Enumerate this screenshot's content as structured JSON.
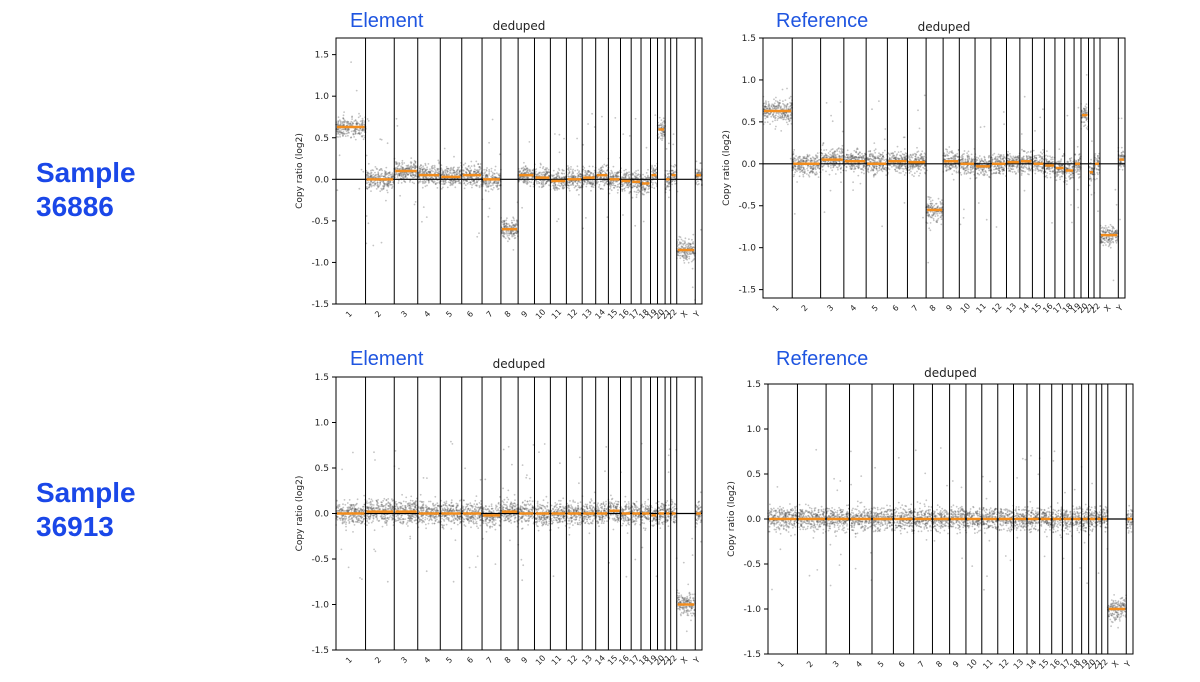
{
  "samples": [
    {
      "label": "Sample\n36886"
    },
    {
      "label": "Sample\n36913"
    }
  ],
  "colors": {
    "label_blue": "#1a47e8",
    "point_gray": "#555555",
    "segment_orange": "#f28c1c",
    "axis": "#000000"
  },
  "chart_data": [
    {
      "type": "scatter",
      "panel_label": "Element",
      "title": "deduped",
      "ylabel": "Copy ratio (log2)",
      "xlabel": "",
      "ylim": [
        -1.5,
        1.7
      ],
      "yticks": [
        -1.5,
        -1.0,
        -0.5,
        0.0,
        0.5,
        1.0,
        1.5
      ],
      "categories": [
        "1",
        "2",
        "3",
        "4",
        "5",
        "6",
        "7",
        "8",
        "9",
        "10",
        "11",
        "12",
        "13",
        "14",
        "15",
        "16",
        "17",
        "18",
        "19",
        "20",
        "21",
        "22",
        "X",
        "Y"
      ],
      "series": [
        {
          "values": [
            0.63,
            0.0,
            0.1,
            0.05,
            0.03,
            0.05,
            0.0,
            -0.6,
            0.05,
            0.02,
            -0.02,
            0.0,
            0.02,
            0.05,
            0.0,
            -0.02,
            -0.03,
            -0.05,
            0.05,
            0.6,
            0.0,
            0.05,
            -0.85,
            0.05
          ]
        }
      ],
      "grid": false
    },
    {
      "type": "scatter",
      "panel_label": "Reference",
      "title": "deduped",
      "ylabel": "Copy ratio (log2)",
      "xlabel": "",
      "ylim": [
        -1.6,
        1.5
      ],
      "yticks": [
        -1.5,
        -1.0,
        -0.5,
        0.0,
        0.5,
        1.0,
        1.5
      ],
      "categories": [
        "1",
        "2",
        "3",
        "4",
        "5",
        "6",
        "7",
        "8",
        "9",
        "10",
        "11",
        "12",
        "13",
        "14",
        "15",
        "16",
        "17",
        "18",
        "19",
        "20",
        "21",
        "22",
        "X",
        "Y"
      ],
      "series": [
        {
          "values": [
            0.63,
            0.0,
            0.05,
            0.03,
            0.0,
            0.03,
            0.02,
            -0.55,
            0.03,
            0.0,
            -0.03,
            0.0,
            0.02,
            0.03,
            0.0,
            -0.02,
            -0.05,
            -0.08,
            0.0,
            0.58,
            -0.1,
            0.0,
            -0.85,
            0.05
          ]
        }
      ],
      "grid": false
    },
    {
      "type": "scatter",
      "panel_label": "Element",
      "title": "deduped",
      "ylabel": "Copy ratio (log2)",
      "xlabel": "",
      "ylim": [
        -1.5,
        1.5
      ],
      "yticks": [
        -1.5,
        -1.0,
        -0.5,
        0.0,
        0.5,
        1.0,
        1.5
      ],
      "categories": [
        "1",
        "2",
        "3",
        "4",
        "5",
        "6",
        "7",
        "8",
        "9",
        "10",
        "11",
        "12",
        "13",
        "14",
        "15",
        "16",
        "17",
        "18",
        "19",
        "20",
        "21",
        "22",
        "X",
        "Y"
      ],
      "series": [
        {
          "values": [
            0.0,
            0.02,
            0.02,
            0.0,
            0.0,
            0.0,
            -0.02,
            0.02,
            0.0,
            0.0,
            0.0,
            0.0,
            0.0,
            0.0,
            0.03,
            0.0,
            0.0,
            0.0,
            -0.02,
            0.0,
            0.0,
            0.0,
            -1.0,
            0.0
          ]
        }
      ],
      "grid": false
    },
    {
      "type": "scatter",
      "panel_label": "Reference",
      "title": "deduped",
      "ylabel": "Copy ratio (log2)",
      "xlabel": "",
      "ylim": [
        -1.5,
        1.5
      ],
      "yticks": [
        -1.5,
        -1.0,
        -0.5,
        0.0,
        0.5,
        1.0,
        1.5
      ],
      "categories": [
        "1",
        "2",
        "3",
        "4",
        "5",
        "6",
        "7",
        "8",
        "9",
        "10",
        "11",
        "12",
        "13",
        "14",
        "15",
        "16",
        "17",
        "18",
        "19",
        "20",
        "21",
        "22",
        "X",
        "Y"
      ],
      "series": [
        {
          "values": [
            0.0,
            0.0,
            0.0,
            0.0,
            0.0,
            0.0,
            0.0,
            0.0,
            0.0,
            0.0,
            0.0,
            0.0,
            0.0,
            0.0,
            0.0,
            0.0,
            0.0,
            0.0,
            0.0,
            0.0,
            0.0,
            0.0,
            -1.0,
            0.0
          ]
        }
      ],
      "grid": false
    }
  ]
}
